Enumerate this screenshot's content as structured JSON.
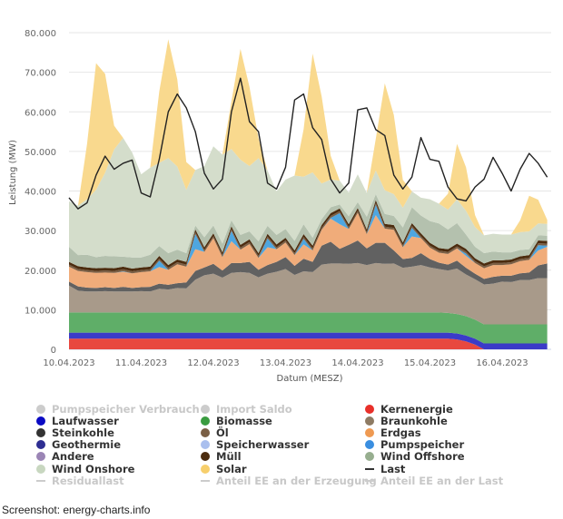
{
  "footer": "Screenshot: energy-charts.info",
  "chart_data": {
    "type": "area",
    "stacked": true,
    "title": "",
    "xlabel": "Datum (MESZ)",
    "ylabel": "Leistung (MW)",
    "ylim": [
      0,
      80000
    ],
    "yticks": [
      0,
      10000,
      20000,
      30000,
      40000,
      50000,
      60000,
      70000,
      80000
    ],
    "ytick_labels": [
      "0",
      "10.000",
      "20.000",
      "30.000",
      "40.000",
      "50.000",
      "60.000",
      "70.000",
      "80.000"
    ],
    "xlim_days": [
      0,
      6.68
    ],
    "xticks_days": [
      0,
      1,
      2,
      3,
      4,
      5,
      6
    ],
    "xtick_labels": [
      "10.04.2023",
      "11.04.2023",
      "12.04.2023",
      "13.04.2023",
      "14.04.2023",
      "15.04.2023",
      "16.04.2023"
    ],
    "grid": true,
    "legend_position": "bottom",
    "x_hours_step": 3,
    "x_hours": [
      0,
      3,
      6,
      9,
      12,
      15,
      18,
      21,
      24,
      27,
      30,
      33,
      36,
      39,
      42,
      45,
      48,
      51,
      54,
      57,
      60,
      63,
      66,
      69,
      72,
      75,
      78,
      81,
      84,
      87,
      90,
      93,
      96,
      99,
      102,
      105,
      108,
      111,
      114,
      117,
      120,
      123,
      126,
      129,
      132,
      135,
      138,
      141,
      144,
      147,
      150,
      153,
      156,
      159
    ],
    "series": [
      {
        "name": "Kernenergie",
        "color": "#e8483f",
        "values": [
          2700,
          2700,
          2700,
          2700,
          2700,
          2700,
          2700,
          2700,
          2700,
          2700,
          2700,
          2700,
          2700,
          2700,
          2700,
          2700,
          2700,
          2700,
          2700,
          2700,
          2700,
          2700,
          2700,
          2700,
          2700,
          2700,
          2700,
          2700,
          2700,
          2700,
          2700,
          2700,
          2700,
          2700,
          2700,
          2700,
          2700,
          2700,
          2700,
          2700,
          2700,
          2700,
          2700,
          2500,
          2000,
          1200,
          0,
          0,
          0,
          0,
          0,
          0,
          0,
          0
        ]
      },
      {
        "name": "Laufwasser",
        "color": "#3b3bc8",
        "values": [
          1500,
          1500,
          1500,
          1500,
          1500,
          1500,
          1500,
          1500,
          1500,
          1500,
          1500,
          1500,
          1500,
          1500,
          1500,
          1500,
          1500,
          1500,
          1500,
          1500,
          1500,
          1500,
          1500,
          1500,
          1500,
          1500,
          1500,
          1500,
          1500,
          1500,
          1500,
          1500,
          1500,
          1500,
          1500,
          1500,
          1500,
          1500,
          1500,
          1500,
          1500,
          1500,
          1500,
          1500,
          1500,
          1500,
          1500,
          1500,
          1500,
          1500,
          1500,
          1500,
          1500,
          1500
        ]
      },
      {
        "name": "Biomasse",
        "color": "#5fae68",
        "values": [
          5100,
          5100,
          5100,
          5100,
          5100,
          5100,
          5100,
          5100,
          5100,
          5100,
          5100,
          5100,
          5100,
          5100,
          5100,
          5100,
          5100,
          5100,
          5100,
          5100,
          5100,
          5100,
          5100,
          5100,
          5100,
          5100,
          5100,
          5100,
          5100,
          5100,
          5100,
          5100,
          5100,
          5100,
          5100,
          5100,
          5100,
          5100,
          5100,
          5100,
          5100,
          5100,
          5000,
          4900,
          4900,
          4800,
          4800,
          4800,
          4800,
          4800,
          4800,
          4800,
          4800,
          4800
        ]
      },
      {
        "name": "Braunkohle",
        "color": "#a89a8a",
        "values": [
          6800,
          5500,
          5300,
          5300,
          5400,
          5300,
          5300,
          5300,
          5400,
          5300,
          6000,
          5800,
          6200,
          6100,
          8300,
          9400,
          9800,
          8800,
          10000,
          10200,
          10000,
          8900,
          9800,
          10300,
          11000,
          9500,
          10400,
          10200,
          12100,
          12400,
          12400,
          12300,
          12500,
          12000,
          12500,
          12300,
          12400,
          11300,
          11600,
          12000,
          11400,
          11000,
          10700,
          11500,
          10500,
          10200,
          10100,
          10300,
          10800,
          10700,
          11200,
          11200,
          11700,
          11700
        ]
      },
      {
        "name": "Steinkohle",
        "color": "#616161",
        "values": [
          1000,
          1100,
          1000,
          900,
          1000,
          900,
          1200,
          900,
          1000,
          1200,
          1300,
          1200,
          1200,
          1500,
          2200,
          2000,
          2500,
          1800,
          2500,
          2300,
          2800,
          1900,
          2200,
          2500,
          3000,
          2300,
          3200,
          2600,
          4800,
          5500,
          3700,
          4800,
          5700,
          4200,
          5100,
          5300,
          3300,
          2200,
          2200,
          3000,
          2100,
          1600,
          1500,
          2000,
          1700,
          1400,
          1400,
          1700,
          1500,
          1600,
          1700,
          1900,
          3200,
          3700
        ]
      },
      {
        "name": "Erdgas",
        "color": "#f0ac7a",
        "values": [
          3800,
          3900,
          3900,
          3800,
          3700,
          3800,
          3800,
          3700,
          3800,
          3900,
          4200,
          3800,
          4800,
          4000,
          5500,
          3900,
          6500,
          3400,
          5500,
          3400,
          4500,
          3000,
          4500,
          3200,
          3700,
          2700,
          3600,
          2900,
          4000,
          5800,
          6200,
          4000,
          7000,
          3600,
          7000,
          3600,
          5200,
          3000,
          5400,
          3800,
          2900,
          2500,
          2700,
          3100,
          3000,
          2700,
          2700,
          3000,
          2700,
          2900,
          3100,
          3200,
          3800,
          4200
        ]
      },
      {
        "name": "Pumpspeicher",
        "color": "#4ea6e0",
        "values": [
          0,
          0,
          0,
          0,
          0,
          0,
          100,
          0,
          0,
          0,
          1600,
          0,
          0,
          0,
          3800,
          0,
          0,
          0,
          2600,
          0,
          0,
          0,
          2200,
          0,
          0,
          0,
          1400,
          0,
          0,
          200,
          2800,
          0,
          0,
          0,
          2600,
          0,
          0,
          0,
          2200,
          0,
          0,
          0,
          0,
          0,
          600,
          0,
          0,
          0,
          0,
          0,
          0,
          0,
          1300,
          300
        ]
      },
      {
        "name": "Öl",
        "color": "#7a5f45",
        "values": [
          500,
          500,
          500,
          500,
          500,
          500,
          500,
          500,
          500,
          500,
          500,
          500,
          500,
          500,
          500,
          500,
          500,
          500,
          500,
          500,
          500,
          500,
          500,
          500,
          500,
          500,
          500,
          500,
          500,
          500,
          500,
          500,
          500,
          500,
          500,
          500,
          500,
          500,
          500,
          500,
          500,
          500,
          500,
          500,
          500,
          500,
          500,
          500,
          500,
          500,
          500,
          500,
          500,
          500
        ]
      },
      {
        "name": "Müll",
        "color": "#4c2c0f",
        "values": [
          700,
          700,
          700,
          700,
          700,
          700,
          700,
          700,
          700,
          700,
          700,
          700,
          700,
          700,
          700,
          700,
          700,
          700,
          700,
          700,
          700,
          700,
          700,
          700,
          700,
          700,
          700,
          700,
          700,
          700,
          700,
          700,
          700,
          700,
          700,
          700,
          700,
          700,
          700,
          700,
          700,
          700,
          700,
          700,
          700,
          700,
          700,
          700,
          700,
          700,
          700,
          700,
          700,
          700
        ]
      },
      {
        "name": "Wind Offshore",
        "color": "#b4c1ae",
        "values": [
          3800,
          2800,
          3200,
          2800,
          3000,
          3000,
          2500,
          2800,
          2500,
          3000,
          2500,
          3000,
          2500,
          2200,
          1000,
          2500,
          2000,
          2200,
          1500,
          2500,
          2000,
          3000,
          2000,
          2400,
          2200,
          2400,
          2500,
          2000,
          1500,
          1500,
          1000,
          2000,
          1500,
          3200,
          1500,
          2500,
          2300,
          3800,
          4000,
          4500,
          5500,
          6200,
          5000,
          5200,
          3600,
          2900,
          2600,
          2200,
          2000,
          1800,
          1600,
          1500,
          1300,
          1300
        ]
      },
      {
        "name": "Wind Onshore",
        "color": "#d4ddcb",
        "values": [
          11500,
          12500,
          14000,
          17000,
          21000,
          27000,
          30000,
          26500,
          21000,
          22000,
          21000,
          24000,
          21000,
          16000,
          14000,
          18000,
          20000,
          22500,
          18000,
          19000,
          16500,
          21000,
          14000,
          11000,
          12500,
          16500,
          12000,
          16500,
          9000,
          7000,
          6000,
          6000,
          7000,
          6000,
          6000,
          6000,
          5500,
          5000,
          4000,
          4500,
          5500,
          5000,
          5000,
          6000,
          6000,
          5000,
          4500,
          4500,
          4500,
          4500,
          4500,
          4500,
          3000,
          3000
        ]
      },
      {
        "name": "Solar",
        "color": "#f9d98e",
        "values": [
          0,
          0,
          14000,
          32000,
          25000,
          6000,
          0,
          0,
          0,
          0,
          18000,
          30000,
          22000,
          7000,
          0,
          0,
          0,
          0,
          12000,
          28000,
          20000,
          5000,
          0,
          0,
          0,
          0,
          12000,
          30000,
          22000,
          6000,
          0,
          0,
          0,
          0,
          8000,
          27000,
          20000,
          7000,
          0,
          0,
          0,
          0,
          4000,
          14000,
          11000,
          3000,
          0,
          0,
          0,
          0,
          3000,
          9000,
          6000,
          1000
        ]
      },
      {
        "name": "Last",
        "color": "#222222",
        "type": "line",
        "values": [
          38300,
          35500,
          37000,
          44000,
          48800,
          45500,
          47000,
          47800,
          39500,
          38500,
          48000,
          60000,
          64500,
          61000,
          55000,
          44500,
          40500,
          43000,
          60000,
          68500,
          57500,
          55000,
          42000,
          40500,
          46000,
          63000,
          64500,
          56000,
          53000,
          43000,
          39500,
          42000,
          60500,
          61000,
          55500,
          54000,
          44000,
          40500,
          43500,
          53500,
          48000,
          47500,
          41000,
          38000,
          37500,
          41000,
          43000,
          48500,
          44500,
          40000,
          45500,
          49500,
          47000,
          43500
        ]
      },
      {
        "name": "Pumpspeicher Verbrauch",
        "color": "#cccccc",
        "hidden": true
      },
      {
        "name": "Import Saldo",
        "color": "#cccccc",
        "hidden": true
      },
      {
        "name": "Geothermie",
        "color": "#2e2e92"
      },
      {
        "name": "Speicherwasser",
        "color": "#aabfee"
      },
      {
        "name": "Andere",
        "color": "#9b85b5"
      },
      {
        "name": "Residuallast",
        "color": "#cccccc",
        "type": "line",
        "hidden": true
      },
      {
        "name": "Anteil EE an der Erzeugung",
        "color": "#cccccc",
        "type": "line",
        "hidden": true
      },
      {
        "name": "Anteil EE an der Last",
        "color": "#cccccc",
        "type": "line",
        "hidden": true
      }
    ],
    "legend": [
      {
        "label": "Pumpspeicher Verbrauch",
        "color": "#cccccc",
        "marker": "dot",
        "hidden": true
      },
      {
        "label": "Import Saldo",
        "color": "#cccccc",
        "marker": "dot",
        "hidden": true
      },
      {
        "label": "Kernenergie",
        "color": "#e8302a",
        "marker": "dot",
        "hidden": false
      },
      {
        "label": "Laufwasser",
        "color": "#0a0ac4",
        "marker": "dot",
        "hidden": false
      },
      {
        "label": "Biomasse",
        "color": "#3a9c40",
        "marker": "dot",
        "hidden": false
      },
      {
        "label": "Braunkohle",
        "color": "#8e7b63",
        "marker": "dot",
        "hidden": false
      },
      {
        "label": "Steinkohle",
        "color": "#333333",
        "marker": "dot",
        "hidden": false
      },
      {
        "label": "Öl",
        "color": "#7a5f45",
        "marker": "dot",
        "hidden": false
      },
      {
        "label": "Erdgas",
        "color": "#ef9a52",
        "marker": "dot",
        "hidden": false
      },
      {
        "label": "Geothermie",
        "color": "#2e2e92",
        "marker": "dot",
        "hidden": false
      },
      {
        "label": "Speicherwasser",
        "color": "#aabfee",
        "marker": "dot",
        "hidden": false
      },
      {
        "label": "Pumpspeicher",
        "color": "#3a8ee0",
        "marker": "dot",
        "hidden": false
      },
      {
        "label": "Andere",
        "color": "#9b85b5",
        "marker": "dot",
        "hidden": false
      },
      {
        "label": "Müll",
        "color": "#4c2c0f",
        "marker": "dot",
        "hidden": false
      },
      {
        "label": "Wind Offshore",
        "color": "#97ae8f",
        "marker": "dot",
        "hidden": false
      },
      {
        "label": "Wind Onshore",
        "color": "#c8d7c0",
        "marker": "dot",
        "hidden": false
      },
      {
        "label": "Solar",
        "color": "#f7cf6c",
        "marker": "dot",
        "hidden": false
      },
      {
        "label": "Last",
        "color": "#333333",
        "marker": "line",
        "hidden": false
      },
      {
        "label": "Residuallast",
        "color": "#cccccc",
        "marker": "line",
        "hidden": true
      },
      {
        "label": "Anteil EE an der Erzeugung",
        "color": "#cccccc",
        "marker": "line",
        "hidden": true
      },
      {
        "label": "Anteil EE an der Last",
        "color": "#cccccc",
        "marker": "line",
        "hidden": true
      }
    ]
  }
}
